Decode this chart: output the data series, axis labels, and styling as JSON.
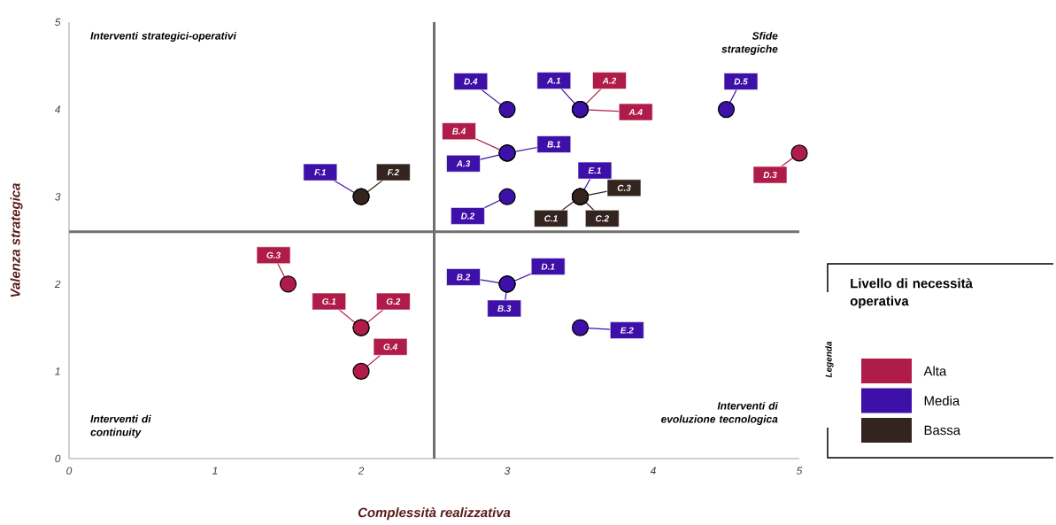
{
  "chart_data": {
    "type": "scatter",
    "xlabel": "Complessità realizzativa",
    "ylabel": "Valenza strategica",
    "xlim": [
      0,
      5
    ],
    "ylim": [
      0,
      5
    ],
    "xticks": [
      0,
      1,
      2,
      3,
      4,
      5
    ],
    "yticks": [
      0,
      1,
      2,
      3,
      4,
      5
    ],
    "marker": "circle",
    "legend": "right",
    "legend_title": "Livello di necessità operativa",
    "ref_lines": [
      {
        "axis": "x",
        "value": 2.5,
        "color": "#707070"
      },
      {
        "axis": "y",
        "value": 2.6,
        "color": "#707070"
      }
    ],
    "annotations": [
      "Interventi strategici-operativi",
      "Sfide strategiche",
      "Interventi di continuity",
      "Interventi di evoluzione tecnologica",
      "Legenda"
    ],
    "series": [
      {
        "name": "Alta",
        "color": "#b01c4a",
        "x": [
          3.5,
          3.5,
          3,
          5,
          1.5,
          2,
          2,
          2
        ],
        "values": [
          4,
          4,
          3.5,
          3.5,
          2,
          1.5,
          1.5,
          1
        ],
        "value_labels": [
          "A.2",
          "A.4",
          "B.4",
          "D.3",
          "G.3",
          "G.1",
          "G.2",
          "G.4"
        ]
      },
      {
        "name": "Media",
        "color": "#3d10a8",
        "x": [
          3,
          3.5,
          4.5,
          3,
          3,
          3.5,
          3,
          2,
          3,
          3,
          3,
          3.5
        ],
        "values": [
          4,
          4,
          4,
          3.5,
          3.5,
          3,
          3,
          3,
          2,
          2,
          2,
          1.5
        ],
        "value_labels": [
          "D.4",
          "A.1",
          "D.5",
          "B.1",
          "A.3",
          "E.1",
          "D.2",
          "F.1",
          "B.2",
          "D.1",
          "B.3",
          "E.2"
        ]
      },
      {
        "name": "Bassa",
        "color": "#33241f",
        "x": [
          3.5,
          3.5,
          3.5,
          2
        ],
        "values": [
          3,
          3,
          3,
          3
        ],
        "value_labels": [
          "C.3",
          "C.1",
          "C.2",
          "F.2"
        ]
      }
    ]
  }
}
